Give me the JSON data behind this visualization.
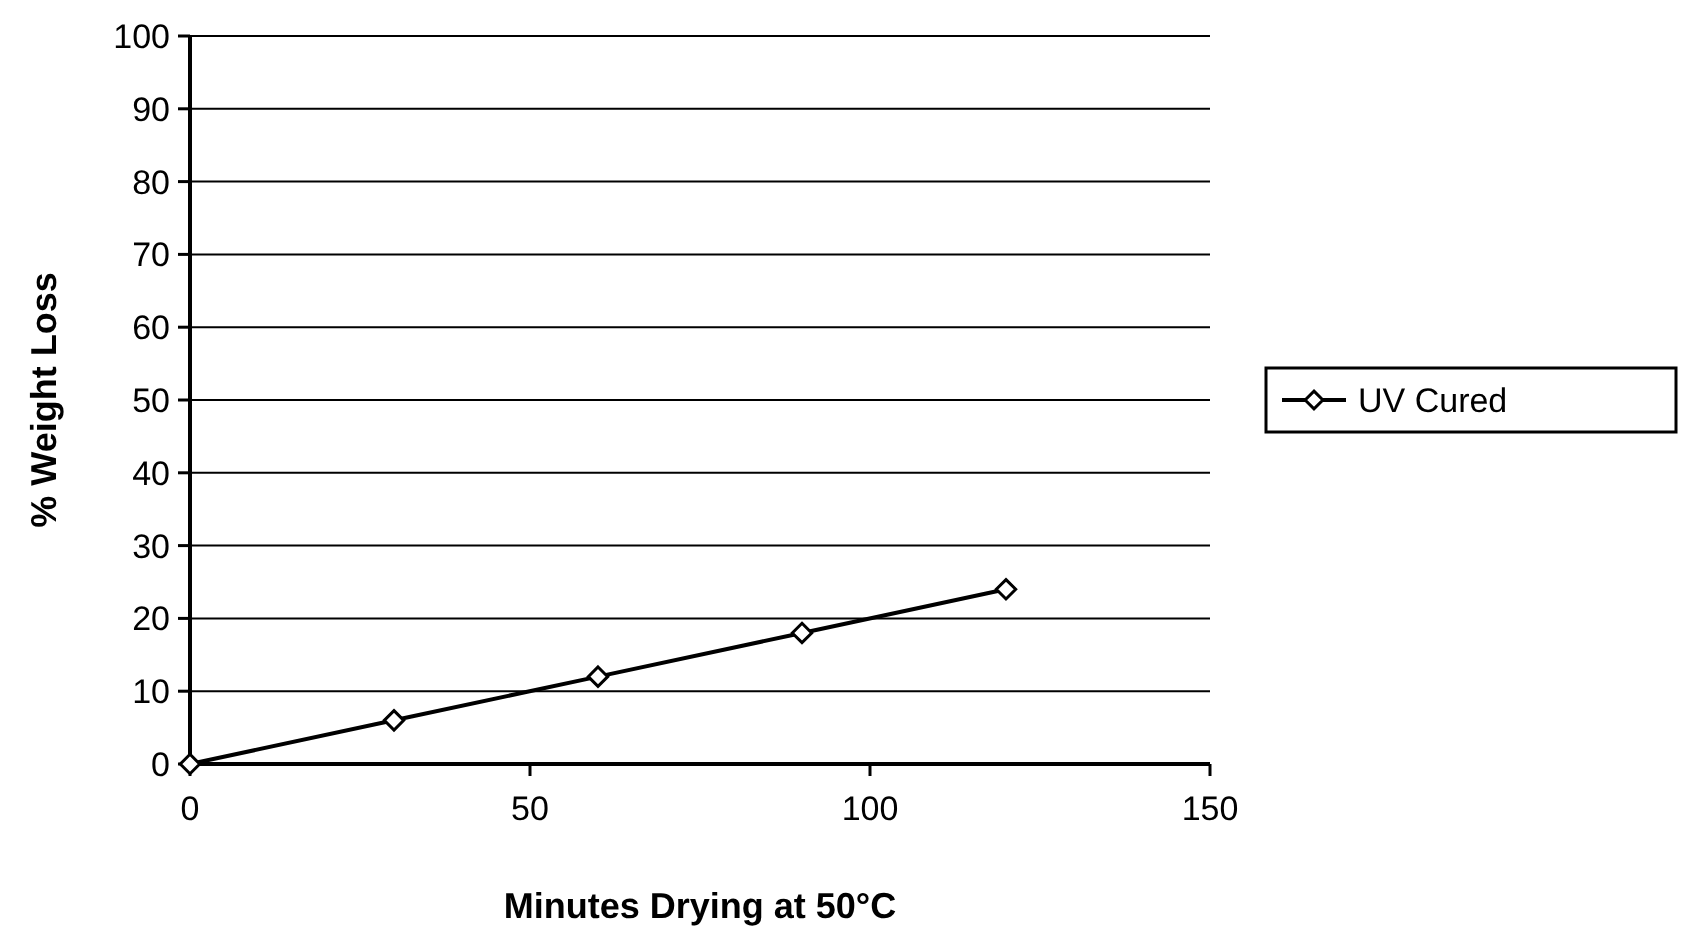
{
  "chart_data": {
    "type": "line",
    "xlabel": "Minutes Drying at 50°C",
    "ylabel": "% Weight Loss",
    "x": [
      0,
      30,
      60,
      90,
      120
    ],
    "series": [
      {
        "name": "UV Cured",
        "color": "#000000",
        "values": [
          0,
          6,
          12,
          18,
          24
        ]
      }
    ],
    "xlim": [
      0,
      150
    ],
    "xticks": [
      0,
      50,
      100,
      150
    ],
    "ylim": [
      0,
      100
    ],
    "yticks": [
      0,
      10,
      20,
      30,
      40,
      50,
      60,
      70,
      80,
      90,
      100
    ],
    "grid": "y",
    "legend": "right",
    "marker": "diamond",
    "line_style": "solid"
  }
}
